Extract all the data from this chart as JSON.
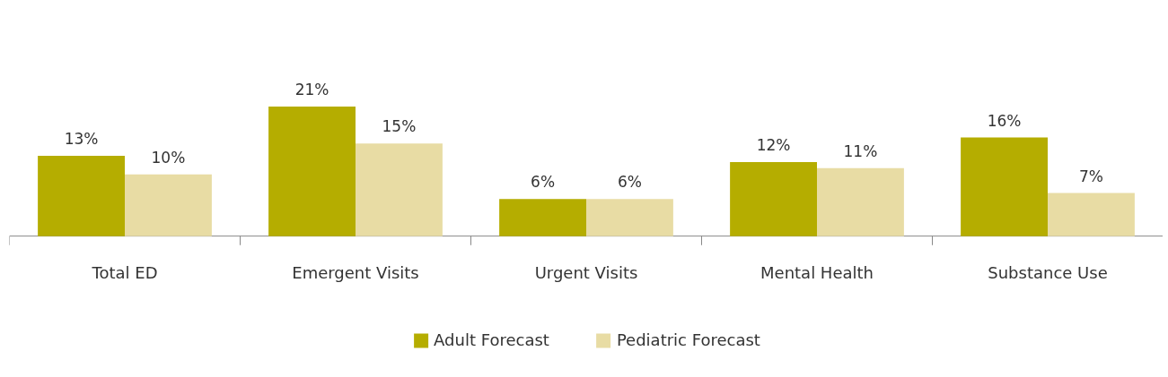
{
  "chart_data": {
    "type": "bar",
    "categories": [
      "Total ED",
      "Emergent Visits",
      "Urgent Visits",
      "Mental Health",
      "Substance Use"
    ],
    "series": [
      {
        "name": "Adult Forecast",
        "color": "#b5ad00",
        "values": [
          13,
          21,
          6,
          12,
          16
        ],
        "value_labels": [
          "13%",
          "21%",
          "6%",
          "12%",
          "16%"
        ]
      },
      {
        "name": "Pediatric Forecast",
        "color": "#e8dca4",
        "values": [
          10,
          15,
          6,
          11,
          7
        ],
        "value_labels": [
          "10%",
          "15%",
          "6%",
          "11%",
          "7%"
        ]
      }
    ],
    "legend": "bottom"
  }
}
